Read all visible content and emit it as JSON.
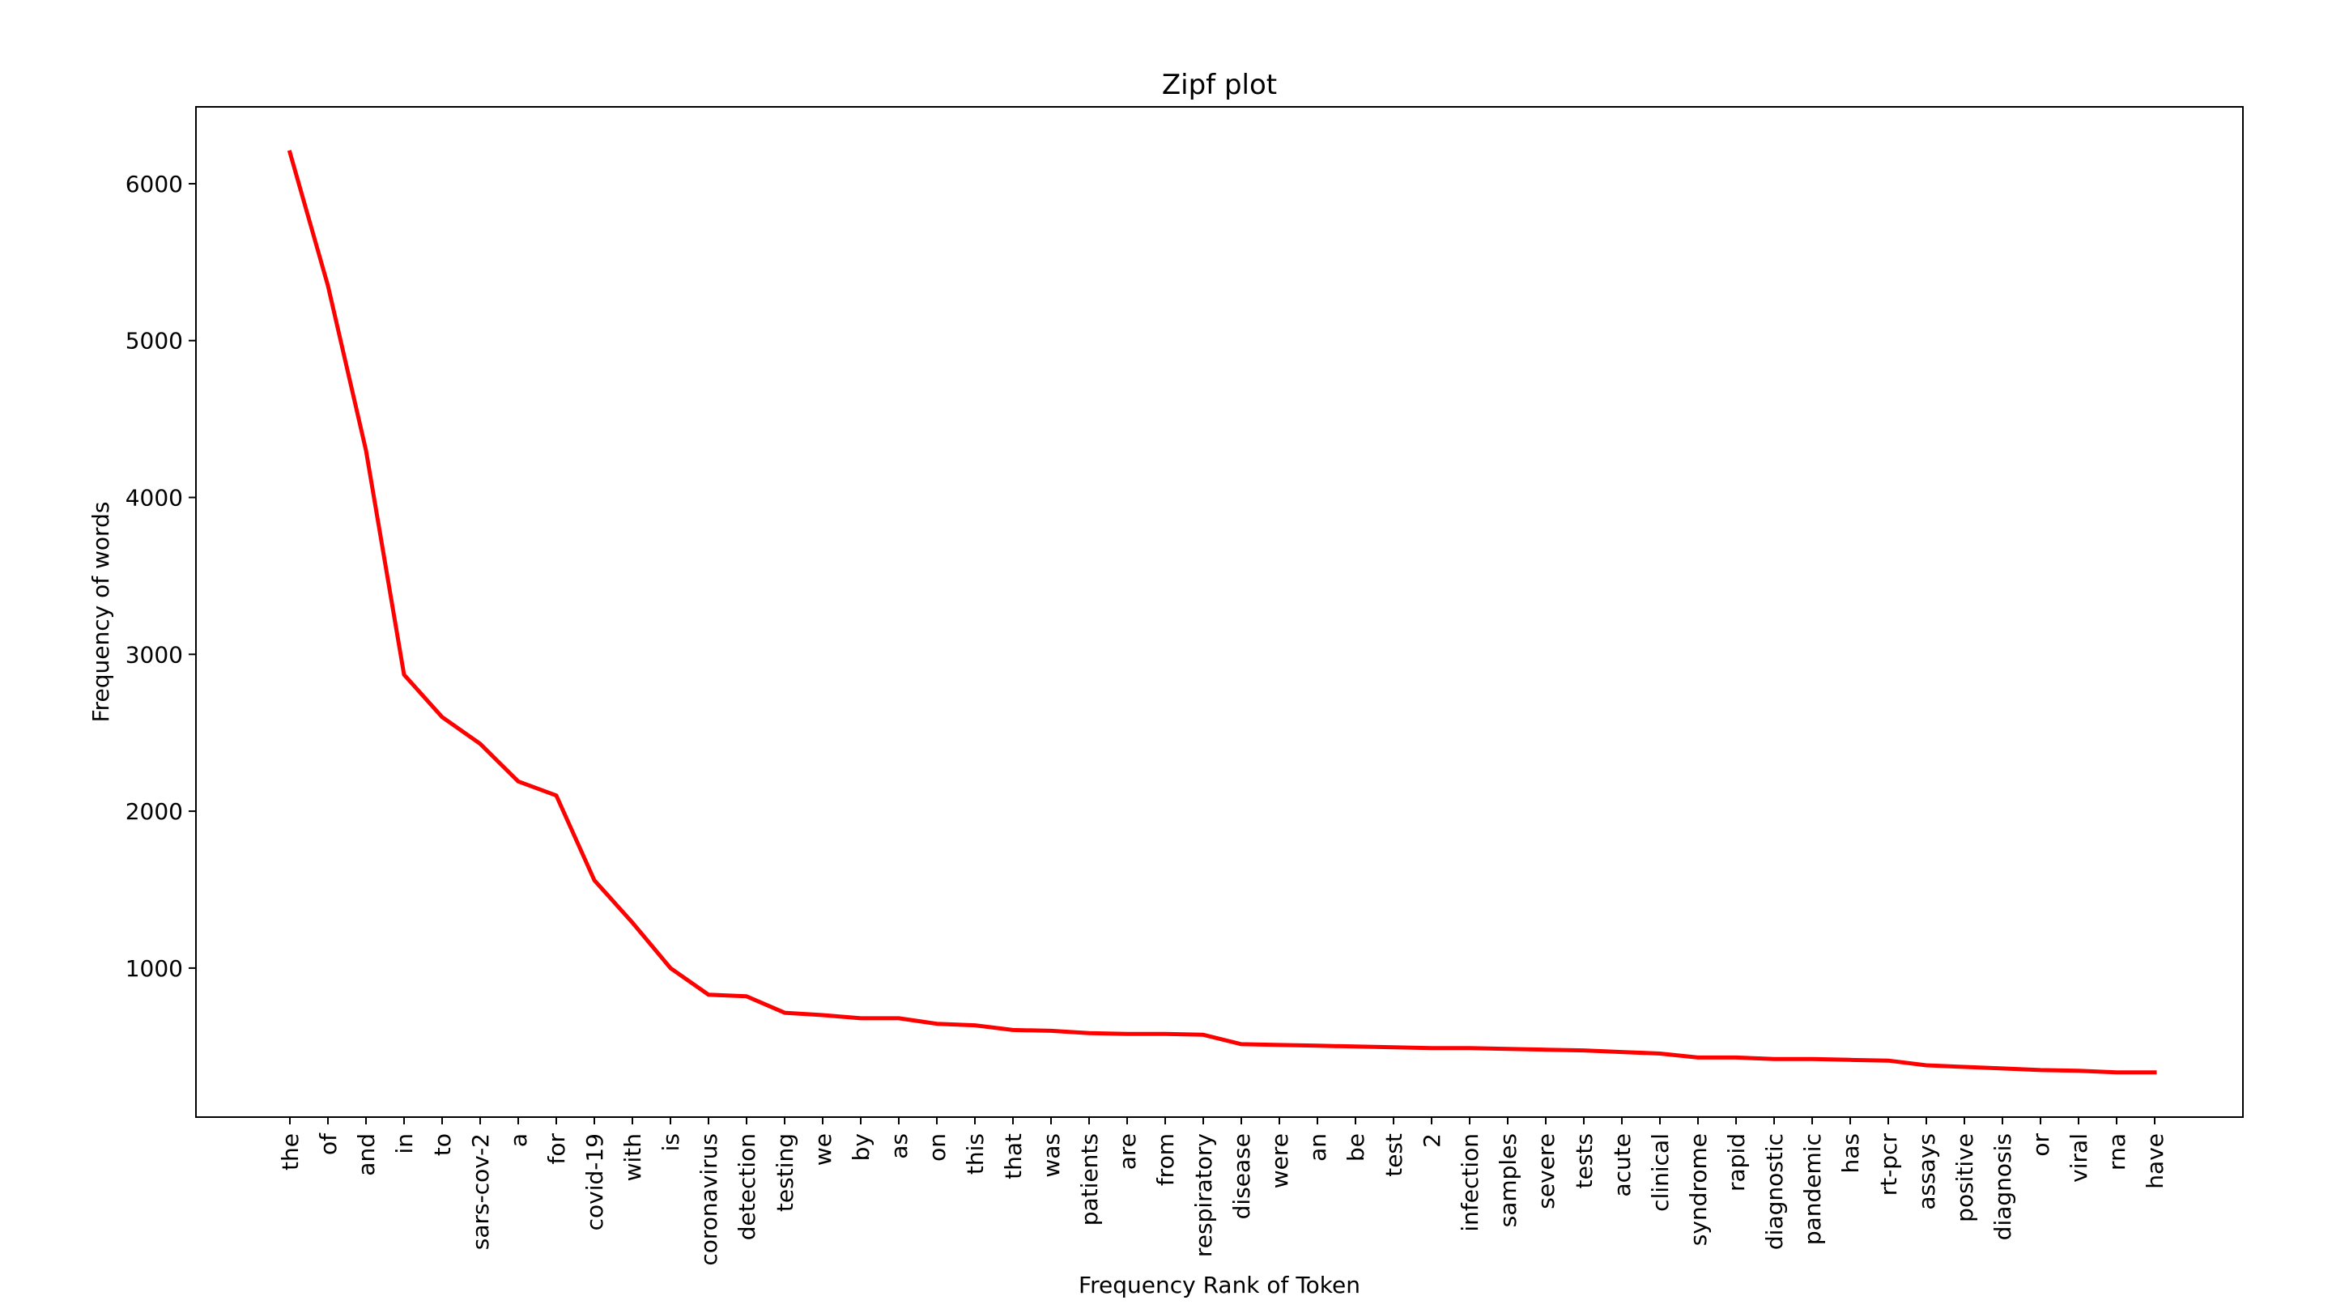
{
  "chart_data": {
    "type": "line",
    "title": "Zipf plot",
    "xlabel": "Frequency Rank of Token",
    "ylabel": "Frequency of words",
    "categories": [
      "the",
      "of",
      "and",
      "in",
      "to",
      "sars-cov-2",
      "a",
      "for",
      "covid-19",
      "with",
      "is",
      "coronavirus",
      "detection",
      "testing",
      "we",
      "by",
      "as",
      "on",
      "this",
      "that",
      "was",
      "patients",
      "are",
      "from",
      "respiratory",
      "disease",
      "were",
      "an",
      "be",
      "test",
      "2",
      "infection",
      "samples",
      "severe",
      "tests",
      "acute",
      "clinical",
      "syndrome",
      "rapid",
      "diagnostic",
      "pandemic",
      "has",
      "rt-pcr",
      "assays",
      "positive",
      "diagnosis",
      "or",
      "viral",
      "rna",
      "have"
    ],
    "series": [
      {
        "color": "#ff0000",
        "values": [
          6200,
          5350,
          4300,
          2870,
          2600,
          2430,
          2190,
          2100,
          1560,
          1290,
          1000,
          830,
          820,
          715,
          700,
          680,
          680,
          645,
          635,
          605,
          600,
          585,
          580,
          580,
          575,
          515,
          510,
          505,
          500,
          495,
          490,
          490,
          485,
          480,
          475,
          465,
          455,
          430,
          430,
          420,
          420,
          415,
          410,
          380,
          370,
          360,
          350,
          345,
          335,
          335
        ]
      }
    ],
    "yticks": [
      1000,
      2000,
      3000,
      4000,
      5000,
      6000
    ],
    "ylim": [
      50,
      6490
    ],
    "grid": false,
    "legend": "none"
  }
}
